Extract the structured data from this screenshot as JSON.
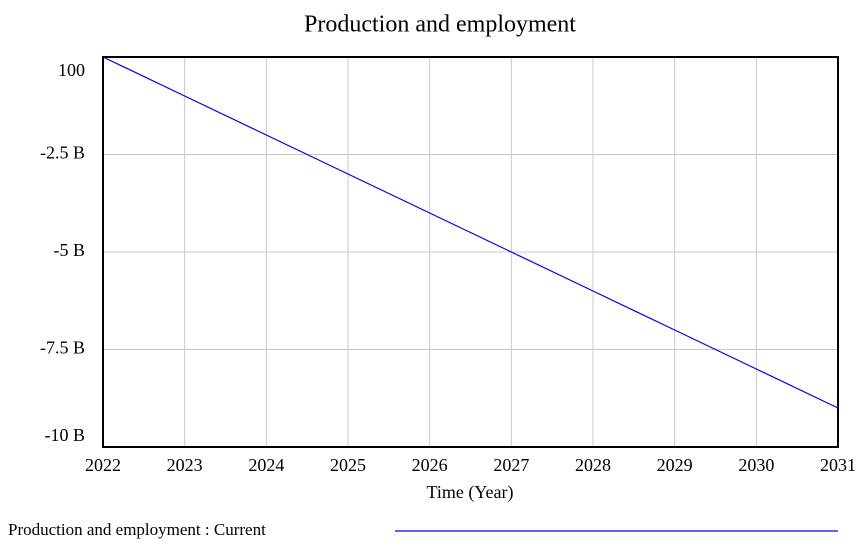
{
  "chart_data": {
    "type": "line",
    "title": "Production and employment",
    "x_label": "Time (Year)",
    "x": [
      2022,
      2023,
      2024,
      2025,
      2026,
      2027,
      2028,
      2029,
      2030,
      2031
    ],
    "series": [
      {
        "name": "Production and employment : Current",
        "color": "#0000ff",
        "values": [
          100,
          -1000000000,
          -2000000000,
          -3000000000,
          -4000000000,
          -5000000000,
          -6000000000,
          -7000000000,
          -8000000000,
          -9000000000
        ]
      }
    ],
    "xlim": [
      2022,
      2031
    ],
    "xticks": [
      2022,
      2023,
      2024,
      2025,
      2026,
      2027,
      2028,
      2029,
      2030,
      2031
    ],
    "ylim": [
      -10000000000,
      100
    ],
    "yticks": [
      100,
      {
        "value": -2500000000,
        "label": "-2.5 B"
      },
      {
        "value": -5000000000,
        "label": "-5 B"
      },
      {
        "value": -7500000000,
        "label": "-7.5 B"
      },
      {
        "value": -10000000000,
        "label": "-10 B"
      }
    ],
    "grid": true
  }
}
